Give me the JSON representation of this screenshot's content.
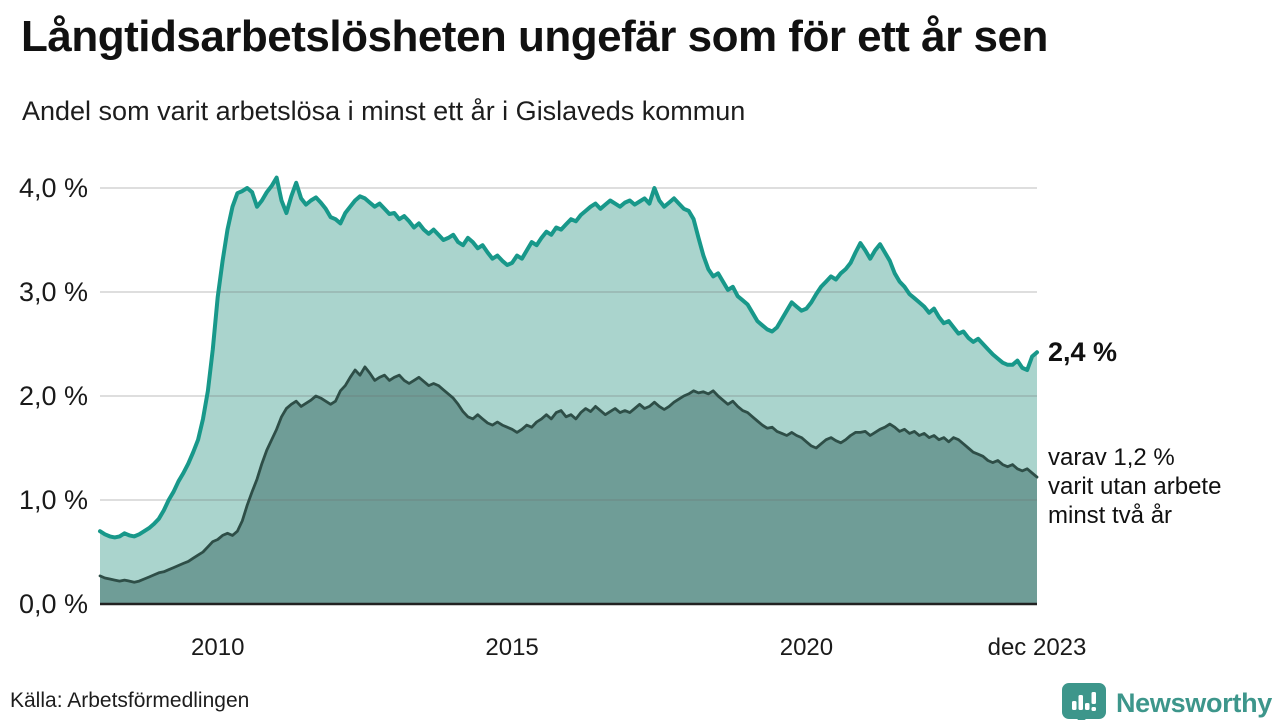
{
  "header": {
    "title": "Långtidsarbetslösheten ungefär som för ett år sen",
    "subtitle": "Andel som varit arbetslösa i minst ett år i Gislaveds kommun"
  },
  "annotations": {
    "latest_total": "2,4 %",
    "note_lines": [
      "varav 1,2 %",
      "varit utan arbete",
      "minst två år"
    ]
  },
  "footer": {
    "source": "Källa: Arbetsförmedlingen",
    "brand": "Newsworthy",
    "logo_icon": "bar-chart-pin-icon"
  },
  "colors": {
    "line_total": "#18988a",
    "fill_total": "#aad4cd",
    "line_two_years": "#2e4e47",
    "fill_two_years": "#6f9d97",
    "grid": "rgba(110,110,110,0.30)",
    "axis_baseline": "#222222",
    "brand_teal": "#3d968b",
    "text": "#1a1a1a"
  },
  "chart_data": {
    "type": "area",
    "title": "Långtidsarbetslösheten ungefär som för ett år sen",
    "subtitle": "Andel som varit arbetslösa i minst ett år i Gislaveds kommun",
    "x_unit": "month",
    "x_range": [
      "jan 2008",
      "dec 2023"
    ],
    "ylim": [
      0,
      4.15
    ],
    "grid": "horizontal",
    "legend_position": "none",
    "y_ticks": [
      {
        "value": 0.0,
        "label": "0,0 %"
      },
      {
        "value": 1.0,
        "label": "1,0 %"
      },
      {
        "value": 2.0,
        "label": "2,0 %"
      },
      {
        "value": 3.0,
        "label": "3,0 %"
      },
      {
        "value": 4.0,
        "label": "4,0 %"
      }
    ],
    "x_ticks": [
      {
        "month_index": 24,
        "label": "2010"
      },
      {
        "month_index": 84,
        "label": "2015"
      },
      {
        "month_index": 144,
        "label": "2020"
      },
      {
        "month_index": 191,
        "label": "dec 2023"
      }
    ],
    "series": [
      {
        "name": "Arbetslösa minst ett år",
        "end_label": "2,4 %",
        "end_value": 2.4,
        "values": [
          0.7,
          0.67,
          0.65,
          0.64,
          0.65,
          0.68,
          0.66,
          0.65,
          0.67,
          0.7,
          0.73,
          0.77,
          0.82,
          0.9,
          1.0,
          1.08,
          1.18,
          1.26,
          1.35,
          1.46,
          1.58,
          1.78,
          2.05,
          2.45,
          2.95,
          3.3,
          3.6,
          3.82,
          3.95,
          3.97,
          4.0,
          3.96,
          3.82,
          3.88,
          3.96,
          4.02,
          4.1,
          3.88,
          3.76,
          3.92,
          4.05,
          3.9,
          3.84,
          3.88,
          3.91,
          3.86,
          3.8,
          3.72,
          3.7,
          3.66,
          3.76,
          3.82,
          3.88,
          3.92,
          3.9,
          3.86,
          3.82,
          3.85,
          3.8,
          3.75,
          3.76,
          3.7,
          3.73,
          3.68,
          3.62,
          3.66,
          3.6,
          3.56,
          3.6,
          3.55,
          3.5,
          3.52,
          3.55,
          3.48,
          3.45,
          3.52,
          3.48,
          3.42,
          3.45,
          3.38,
          3.32,
          3.35,
          3.3,
          3.26,
          3.28,
          3.35,
          3.32,
          3.4,
          3.48,
          3.45,
          3.52,
          3.58,
          3.55,
          3.62,
          3.6,
          3.65,
          3.7,
          3.68,
          3.74,
          3.78,
          3.82,
          3.85,
          3.8,
          3.84,
          3.88,
          3.85,
          3.82,
          3.86,
          3.88,
          3.84,
          3.87,
          3.9,
          3.85,
          4.0,
          3.88,
          3.82,
          3.86,
          3.9,
          3.85,
          3.8,
          3.78,
          3.7,
          3.52,
          3.35,
          3.22,
          3.15,
          3.18,
          3.1,
          3.02,
          3.05,
          2.96,
          2.92,
          2.88,
          2.8,
          2.72,
          2.68,
          2.64,
          2.62,
          2.66,
          2.74,
          2.82,
          2.9,
          2.86,
          2.82,
          2.84,
          2.9,
          2.98,
          3.05,
          3.1,
          3.15,
          3.12,
          3.18,
          3.22,
          3.28,
          3.38,
          3.47,
          3.4,
          3.32,
          3.4,
          3.46,
          3.38,
          3.3,
          3.18,
          3.1,
          3.05,
          2.98,
          2.94,
          2.9,
          2.86,
          2.8,
          2.84,
          2.76,
          2.7,
          2.72,
          2.66,
          2.6,
          2.62,
          2.56,
          2.52,
          2.55,
          2.5,
          2.45,
          2.4,
          2.36,
          2.32,
          2.3,
          2.3,
          2.34,
          2.27,
          2.25,
          2.38,
          2.42
        ]
      },
      {
        "name": "varav utan arbete minst två år",
        "end_label": "varav 1,2 % varit utan arbete minst två år",
        "end_value": 1.2,
        "values": [
          0.27,
          0.25,
          0.24,
          0.23,
          0.22,
          0.23,
          0.22,
          0.21,
          0.22,
          0.24,
          0.26,
          0.28,
          0.3,
          0.31,
          0.33,
          0.35,
          0.37,
          0.39,
          0.41,
          0.44,
          0.47,
          0.5,
          0.55,
          0.6,
          0.62,
          0.66,
          0.68,
          0.66,
          0.7,
          0.8,
          0.95,
          1.08,
          1.2,
          1.35,
          1.48,
          1.58,
          1.68,
          1.8,
          1.88,
          1.92,
          1.95,
          1.9,
          1.93,
          1.96,
          2.0,
          1.98,
          1.95,
          1.92,
          1.95,
          2.05,
          2.1,
          2.18,
          2.25,
          2.2,
          2.28,
          2.22,
          2.15,
          2.18,
          2.2,
          2.15,
          2.18,
          2.2,
          2.15,
          2.12,
          2.15,
          2.18,
          2.14,
          2.1,
          2.12,
          2.1,
          2.06,
          2.02,
          1.98,
          1.92,
          1.85,
          1.8,
          1.78,
          1.82,
          1.78,
          1.74,
          1.72,
          1.75,
          1.72,
          1.7,
          1.68,
          1.65,
          1.68,
          1.72,
          1.7,
          1.75,
          1.78,
          1.82,
          1.78,
          1.84,
          1.86,
          1.8,
          1.82,
          1.78,
          1.84,
          1.88,
          1.85,
          1.9,
          1.86,
          1.82,
          1.85,
          1.88,
          1.84,
          1.86,
          1.84,
          1.88,
          1.92,
          1.88,
          1.9,
          1.94,
          1.9,
          1.87,
          1.9,
          1.94,
          1.97,
          2.0,
          2.02,
          2.05,
          2.03,
          2.04,
          2.02,
          2.05,
          2.0,
          1.96,
          1.92,
          1.95,
          1.9,
          1.86,
          1.84,
          1.8,
          1.76,
          1.72,
          1.69,
          1.7,
          1.66,
          1.64,
          1.62,
          1.65,
          1.62,
          1.6,
          1.56,
          1.52,
          1.5,
          1.54,
          1.58,
          1.6,
          1.57,
          1.55,
          1.58,
          1.62,
          1.65,
          1.65,
          1.66,
          1.62,
          1.65,
          1.68,
          1.7,
          1.73,
          1.7,
          1.66,
          1.68,
          1.64,
          1.66,
          1.62,
          1.64,
          1.6,
          1.62,
          1.58,
          1.6,
          1.56,
          1.6,
          1.58,
          1.54,
          1.5,
          1.46,
          1.44,
          1.42,
          1.38,
          1.36,
          1.38,
          1.34,
          1.32,
          1.34,
          1.3,
          1.28,
          1.3,
          1.26,
          1.22
        ]
      }
    ]
  }
}
